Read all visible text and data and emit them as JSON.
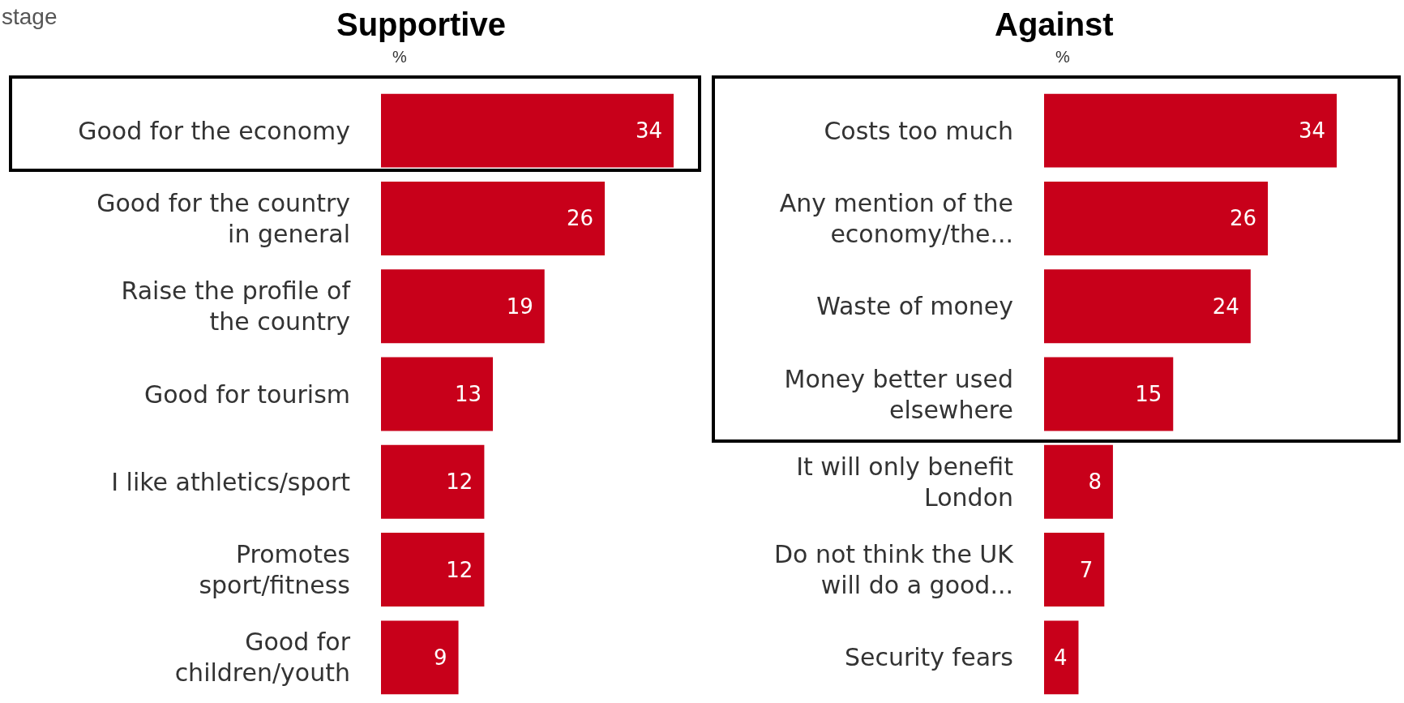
{
  "chart_data": [
    {
      "type": "bar",
      "orientation": "horizontal",
      "title": "Supportive",
      "xlabel": "%",
      "annotations": [
        "stage"
      ],
      "data_labels": true,
      "color": "#c8001a",
      "categories": [
        "Good for the economy",
        "Good for the country\nin general",
        "Raise the profile of\nthe country",
        "Good for tourism",
        "I like athletics/sport",
        "Promotes\nsport/fitness",
        "Good for\nchildren/youth"
      ],
      "values": [
        34,
        26,
        19,
        13,
        12,
        12,
        9
      ]
    },
    {
      "type": "bar",
      "orientation": "horizontal",
      "title": "Against",
      "xlabel": "%",
      "data_labels": true,
      "color": "#c8001a",
      "categories": [
        "Costs too much",
        "Any mention of the\neconomy/the...",
        "Waste of money",
        "Money better used\nelsewhere",
        "It will only benefit\nLondon",
        "Do not think the UK\nwill do a good...",
        "Security fears"
      ],
      "values": [
        34,
        26,
        24,
        15,
        8,
        7,
        4
      ]
    }
  ]
}
